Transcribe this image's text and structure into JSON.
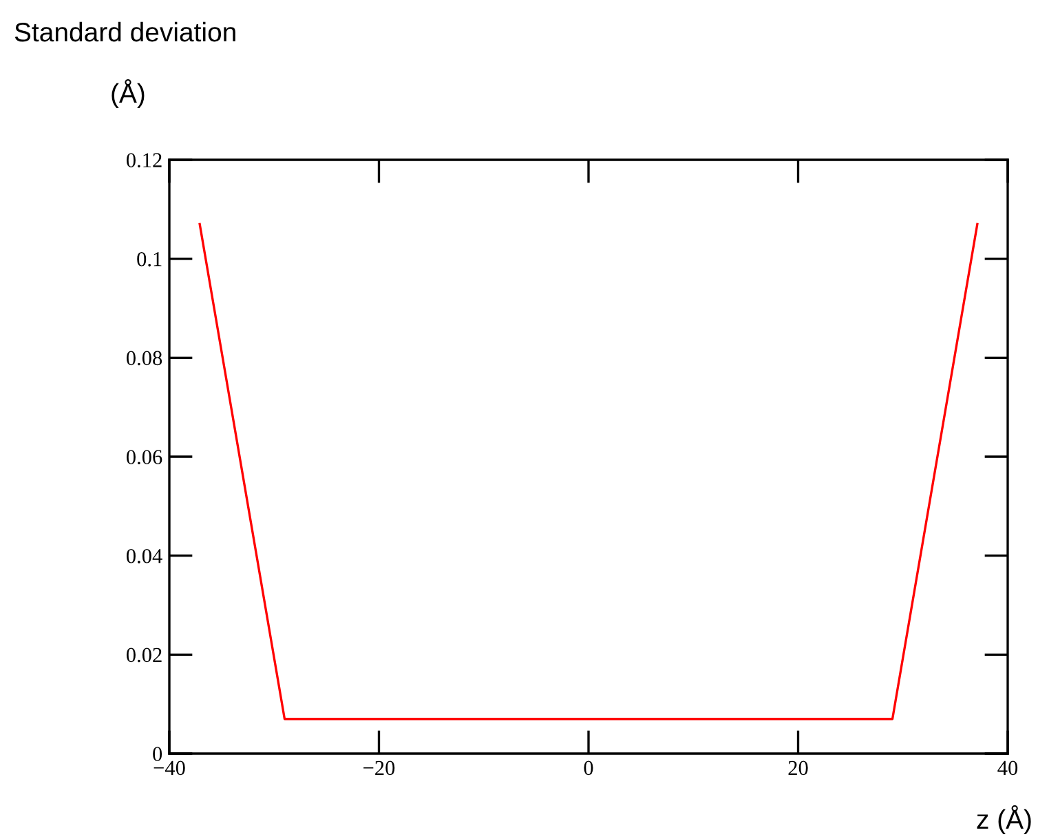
{
  "chart_data": {
    "type": "line",
    "ylabel": "Standard deviation\n(Å)",
    "xlabel": "z (Å)",
    "x": [
      -37.1,
      -29.0,
      29.0,
      37.1
    ],
    "series": [
      {
        "color": "#ff0000",
        "values": [
          0.107,
          0.007,
          0.007,
          0.107
        ]
      }
    ],
    "xlim": [
      -40,
      40
    ],
    "ylim": [
      0,
      0.12
    ],
    "xticks": [
      {
        "value": -40,
        "label": "−40"
      },
      {
        "value": -20,
        "label": "−20"
      },
      0,
      20,
      40
    ],
    "yticks": [
      0,
      0.02,
      0.04,
      0.06,
      0.08,
      0.1,
      0.12
    ],
    "grid": false,
    "marker": "none",
    "line_style": "solid"
  }
}
